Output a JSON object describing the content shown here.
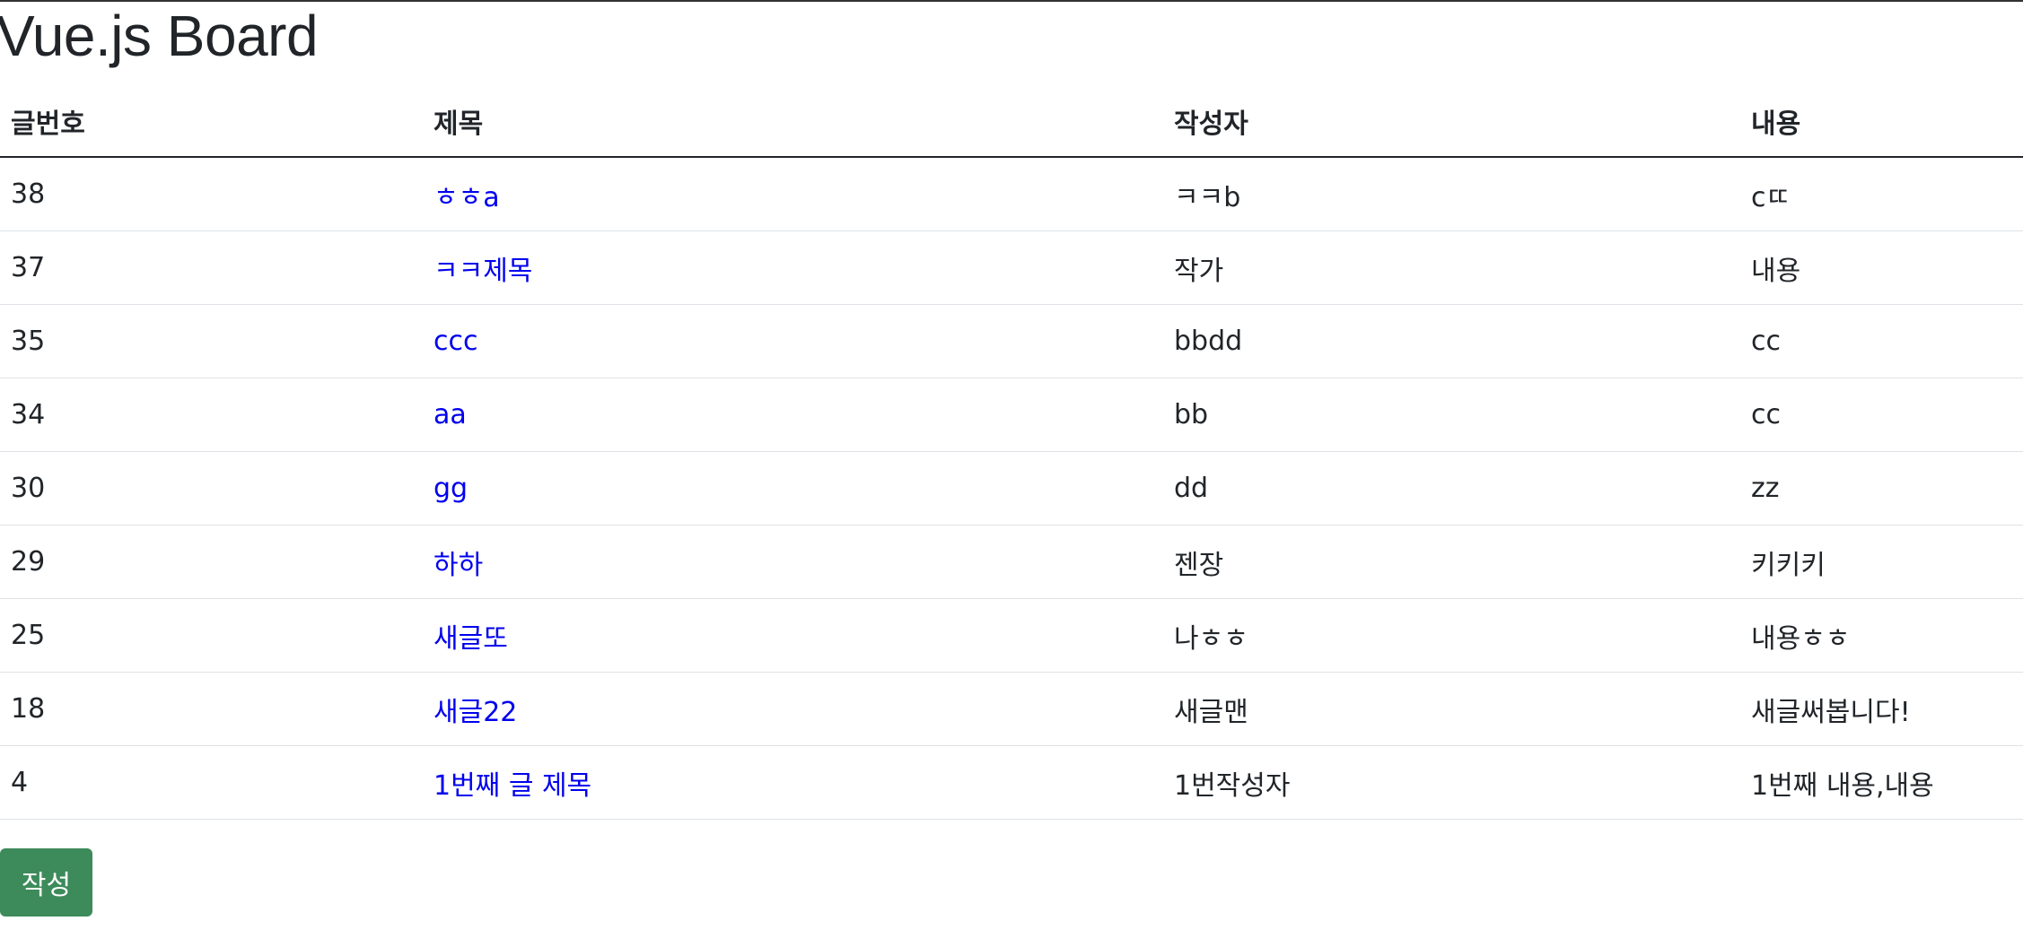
{
  "header": {
    "title": "Vue.js Board"
  },
  "table": {
    "columns": [
      "글번호",
      "제목",
      "작성자",
      "내용"
    ],
    "rows": [
      {
        "no": "38",
        "title": "ㅎㅎa",
        "author": "ㅋㅋb",
        "content": "cㄸ"
      },
      {
        "no": "37",
        "title": "ㅋㅋ제목",
        "author": "작가",
        "content": "내용"
      },
      {
        "no": "35",
        "title": "ccc",
        "author": "bbdd",
        "content": "cc"
      },
      {
        "no": "34",
        "title": "aa",
        "author": "bb",
        "content": "cc"
      },
      {
        "no": "30",
        "title": "gg",
        "author": "dd",
        "content": "zz"
      },
      {
        "no": "29",
        "title": "하하",
        "author": "젠장",
        "content": "키키키"
      },
      {
        "no": "25",
        "title": "새글또",
        "author": "나ㅎㅎ",
        "content": "내용ㅎㅎ"
      },
      {
        "no": "18",
        "title": "새글22",
        "author": "새글맨",
        "content": "새글써봅니다!"
      },
      {
        "no": "4",
        "title": "1번째 글 제목",
        "author": "1번작성자",
        "content": "1번째 내용,내용"
      }
    ]
  },
  "actions": {
    "write_label": "작성"
  },
  "colors": {
    "link": "#0000ee",
    "button": "#3d8b5a"
  }
}
